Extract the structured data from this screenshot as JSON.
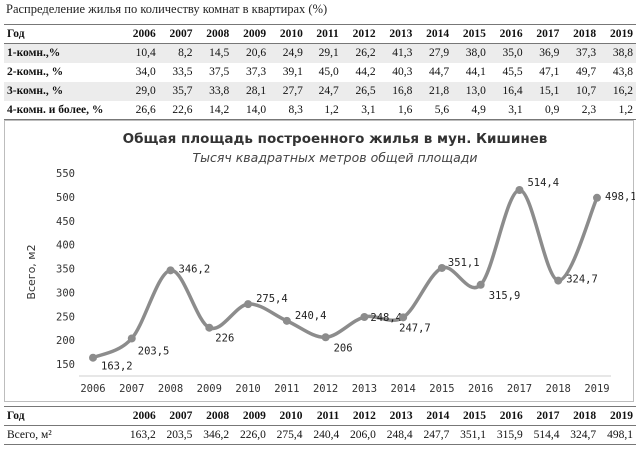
{
  "caption": "Распределение жилья по количеству комнат в квартирах (%)",
  "years": [
    "2006",
    "2007",
    "2008",
    "2009",
    "2010",
    "2011",
    "2012",
    "2013",
    "2014",
    "2015",
    "2016",
    "2017",
    "2018",
    "2019"
  ],
  "rooms_table": {
    "header_label": "Год",
    "rows": [
      {
        "label": "1-комн.,%",
        "values": [
          "10,4",
          "8,2",
          "14,5",
          "20,6",
          "24,9",
          "29,1",
          "26,2",
          "41,3",
          "27,9",
          "38,0",
          "35,0",
          "36,9",
          "37,3",
          "38,8"
        ]
      },
      {
        "label": "2-комн., %",
        "values": [
          "34,0",
          "33,5",
          "37,5",
          "37,3",
          "39,1",
          "45,0",
          "44,2",
          "40,3",
          "44,7",
          "44,1",
          "45,5",
          "47,1",
          "49,7",
          "43,8"
        ]
      },
      {
        "label": "3-комн., %",
        "values": [
          "29,0",
          "35,7",
          "33,8",
          "28,1",
          "27,7",
          "24,7",
          "26,5",
          "16,8",
          "21,8",
          "13,0",
          "16,4",
          "15,1",
          "10,7",
          "16,2"
        ]
      },
      {
        "label": "4-комн. и более, %",
        "values": [
          "26,6",
          "22,6",
          "14,2",
          "14,0",
          "8,3",
          "1,2",
          "3,1",
          "1,6",
          "5,6",
          "4,9",
          "3,1",
          "0,9",
          "2,3",
          "1,2"
        ]
      }
    ]
  },
  "area_table": {
    "header_label": "Год",
    "row_label": "Всего, м²",
    "values": [
      "163,2",
      "203,5",
      "346,2",
      "226,0",
      "275,4",
      "240,4",
      "206,0",
      "248,4",
      "247,7",
      "351,1",
      "315,9",
      "514,4",
      "324,7",
      "498,1"
    ]
  },
  "chart_data": {
    "type": "line",
    "title": "Общая площадь построенного жилья в мун. Кишинев",
    "subtitle": "Тысяч квадратных метров общей площади",
    "ylabel": "Всего, м2",
    "xlabel": "",
    "categories": [
      "2006",
      "2007",
      "2008",
      "2009",
      "2010",
      "2011",
      "2012",
      "2013",
      "2014",
      "2015",
      "2016",
      "2017",
      "2018",
      "2019"
    ],
    "values": [
      163.2,
      203.5,
      346.2,
      226,
      275.4,
      240.4,
      206,
      248.4,
      247.7,
      351.1,
      315.9,
      514.4,
      324.7,
      498.1
    ],
    "point_labels": [
      "163,2",
      "203,5",
      "346,2",
      "226",
      "275,4",
      "240,4",
      "206",
      "248,4",
      "247,7",
      "351,1",
      "315,9",
      "514,4",
      "324,7",
      "498,1"
    ],
    "y_ticks": [
      "150",
      "200",
      "250",
      "300",
      "350",
      "400",
      "450",
      "500",
      "550"
    ],
    "ylim": [
      150,
      550
    ],
    "grid": false,
    "legend": "none",
    "line_color": "#8c8c8c"
  }
}
